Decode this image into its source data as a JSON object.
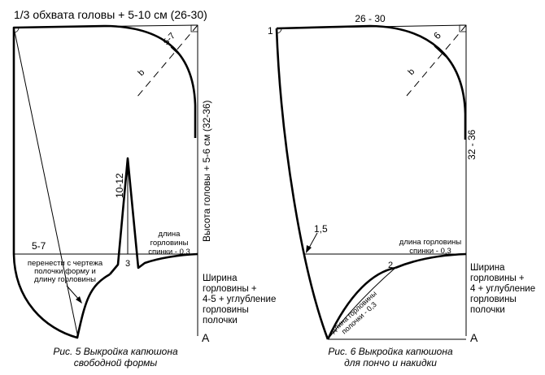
{
  "fig5": {
    "top_label": "1/3 обхвата головы + 5-10 см (26-30)",
    "diag_label": "5-7",
    "b_mark": "b",
    "side_label": "Высота головы + 5-6 см (32-36)",
    "dart_label": "10-12",
    "left_label": "5-7",
    "neck_back_l1": "длина",
    "neck_back_l2": "горловины",
    "neck_back_l3": "спинки - 0,3",
    "mark_3": "3",
    "note_l1": "перенести с чертежа",
    "note_l2": "полочки форму и",
    "note_l3": "длину горловины",
    "width_l1": "Ширина",
    "width_l2": "горловины +",
    "width_l3": "4-5 + углубление",
    "width_l4": "горловины",
    "width_l5": "полочки",
    "a_label": "А",
    "caption_l1": "Рис. 5 Выкройка капюшона",
    "caption_l2": "свободной формы"
  },
  "fig6": {
    "corner_1": "1",
    "top_label": "26 - 30",
    "diag_label": "6",
    "b_mark": "b",
    "side_label": "32 - 36",
    "mark_15": "1,5",
    "neck_back_l1": "длина горловины",
    "neck_back_l2": "спинки - 0,3",
    "mark_2": "2",
    "front_neck_l1": "длина горловины",
    "front_neck_l2": "полочки - 0,3",
    "width_l1": "Ширина",
    "width_l2": "горловины +",
    "width_l3": "4 + углубление",
    "width_l4": "горловины",
    "width_l5": "полочки",
    "a_label": "А",
    "caption_l1": "Рис. 6 Выкройка капюшона",
    "caption_l2": "для пончо и накидки"
  }
}
